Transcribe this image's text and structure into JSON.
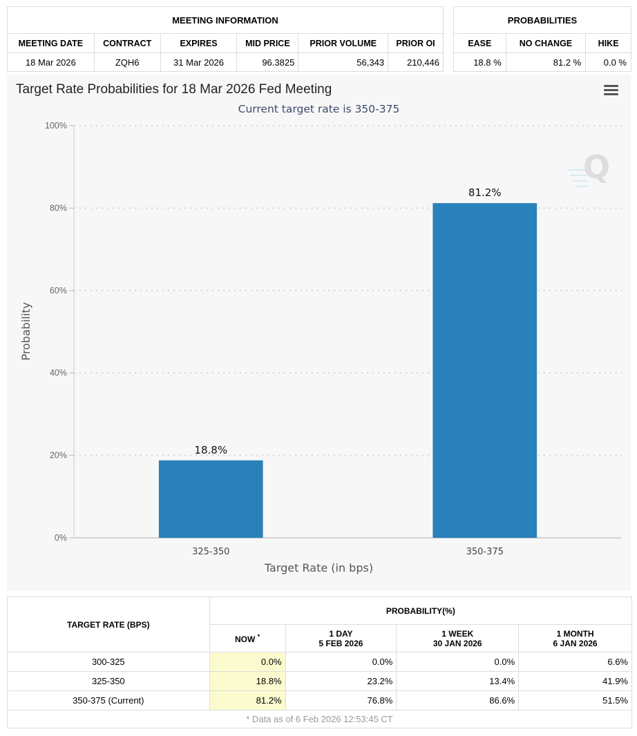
{
  "meeting_info": {
    "header": "MEETING INFORMATION",
    "columns": [
      "MEETING DATE",
      "CONTRACT",
      "EXPIRES",
      "MID PRICE",
      "PRIOR VOLUME",
      "PRIOR OI"
    ],
    "row": [
      "18 Mar 2026",
      "ZQH6",
      "31 Mar 2026",
      "96.3825",
      "56,343",
      "210,446"
    ]
  },
  "probabilities": {
    "header": "PROBABILITIES",
    "columns": [
      "EASE",
      "NO CHANGE",
      "HIKE"
    ],
    "row": [
      "18.8 %",
      "81.2 %",
      "0.0 %"
    ]
  },
  "chart": {
    "title": "Target Rate Probabilities for 18 Mar 2026 Fed Meeting",
    "subtitle": "Current target rate is 350-375",
    "bar_color": "#2a80b9"
  },
  "chart_data": {
    "type": "bar",
    "title": "Target Rate Probabilities for 18 Mar 2026 Fed Meeting",
    "subtitle": "Current target rate is 350-375",
    "categories": [
      "325-350",
      "350-375"
    ],
    "values": [
      18.8,
      81.2
    ],
    "data_labels": [
      "18.8%",
      "81.2%"
    ],
    "xlabel": "Target Rate (in bps)",
    "ylabel": "Probability",
    "ylim": [
      0,
      100
    ],
    "yticks": [
      "0%",
      "20%",
      "40%",
      "60%",
      "80%",
      "100%"
    ],
    "grid": true
  },
  "rate_table": {
    "col_target": "TARGET RATE (BPS)",
    "col_group": "PROBABILITY(%)",
    "sub_cols": [
      {
        "line1": "NOW",
        "line2": ""
      },
      {
        "line1": "1 DAY",
        "line2": "5 FEB 2026"
      },
      {
        "line1": "1 WEEK",
        "line2": "30 JAN 2026"
      },
      {
        "line1": "1 MONTH",
        "line2": "6 JAN 2026"
      }
    ],
    "now_marker": "*",
    "rows": [
      {
        "rate": "300-325",
        "values": [
          "0.0%",
          "0.0%",
          "0.0%",
          "6.6%"
        ]
      },
      {
        "rate": "325-350",
        "values": [
          "18.8%",
          "23.2%",
          "13.4%",
          "41.9%"
        ]
      },
      {
        "rate": "350-375 (Current)",
        "values": [
          "81.2%",
          "76.8%",
          "86.6%",
          "51.5%"
        ]
      }
    ],
    "footnote": "* Data as of 6 Feb 2026 12:53:45 CT"
  }
}
